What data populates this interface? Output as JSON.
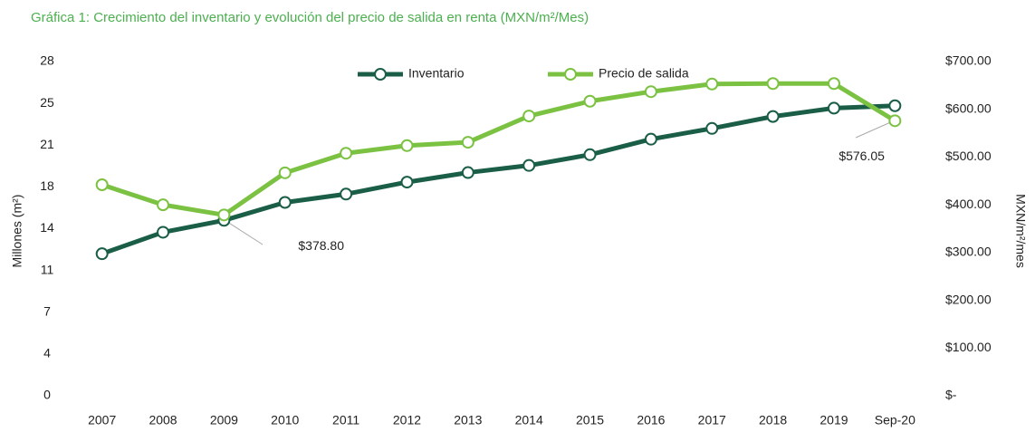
{
  "chart_data": {
    "type": "line",
    "title": "Gráfica 1: Crecimiento del inventario y evolución del precio de salida en renta (MXN/m²/Mes)",
    "ylabel": "Millones (m²)",
    "y2label": "MXN/m²/mes",
    "categories": [
      "2007",
      "2008",
      "2009",
      "2010",
      "2011",
      "2012",
      "2013",
      "2014",
      "2015",
      "2016",
      "2017",
      "2018",
      "2019",
      "Sep-20"
    ],
    "series": [
      {
        "name": "Inventario",
        "color": "#1b5e48",
        "axis": "y",
        "values": [
          11.9,
          13.7,
          14.7,
          16.2,
          16.9,
          17.9,
          18.7,
          19.3,
          20.2,
          21.5,
          22.4,
          23.4,
          24.1,
          24.3
        ]
      },
      {
        "name": "Precio de salida",
        "color": "#7cc242",
        "axis": "y2",
        "values": [
          442,
          400,
          378.8,
          467,
          508,
          524,
          531,
          586,
          617,
          637,
          653,
          654,
          654,
          576.05
        ],
        "value_labels": [
          null,
          null,
          "$378.80",
          null,
          null,
          null,
          null,
          null,
          null,
          null,
          null,
          null,
          null,
          "$576.05"
        ]
      }
    ],
    "ylim": [
      0,
      28
    ],
    "yticks": [
      0,
      {
        "value": 3.5,
        "label": "4"
      },
      7,
      {
        "value": 10.5,
        "label": "11"
      },
      14,
      {
        "value": 17.5,
        "label": "18"
      },
      21,
      {
        "value": 24.5,
        "label": "25"
      },
      28
    ],
    "y2lim": [
      0,
      700
    ],
    "y2ticks": [
      {
        "value": 0,
        "label": "$-"
      },
      {
        "value": 100,
        "label": "$100.00"
      },
      {
        "value": 200,
        "label": "$200.00"
      },
      {
        "value": 300,
        "label": "$300.00"
      },
      {
        "value": 400,
        "label": "$400.00"
      },
      {
        "value": 500,
        "label": "$500.00"
      },
      {
        "value": 600,
        "label": "$600.00"
      },
      {
        "value": 700,
        "label": "$700.00"
      }
    ],
    "grid": false,
    "legend": "top"
  }
}
